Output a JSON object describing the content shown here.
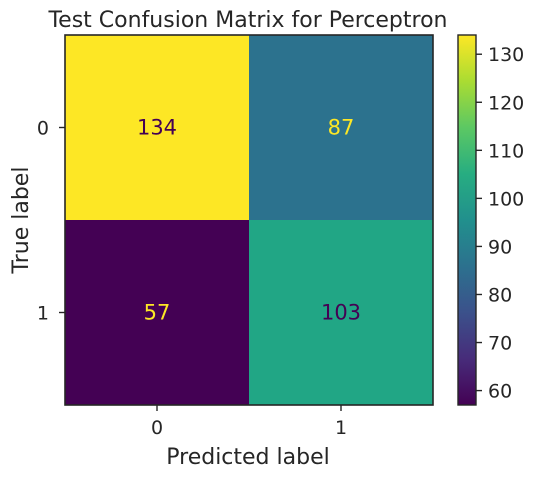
{
  "chart_data": {
    "type": "heatmap",
    "title": "Test Confusion Matrix for Perceptron",
    "xlabel": "Predicted label",
    "ylabel": "True label",
    "x_ticks": [
      "0",
      "1"
    ],
    "y_ticks": [
      "0",
      "1"
    ],
    "matrix": [
      [
        134,
        87
      ],
      [
        57,
        103
      ]
    ],
    "colormap": "viridis",
    "colorbar": {
      "range": [
        57,
        134
      ],
      "ticks": [
        60,
        70,
        80,
        90,
        100,
        110,
        120,
        130
      ]
    },
    "colors": {
      "cells": [
        [
          "#fde725",
          "#2c728e"
        ],
        [
          "#440154",
          "#21a685"
        ]
      ],
      "text": [
        [
          "#440154",
          "#fde725"
        ],
        [
          "#fde725",
          "#440154"
        ]
      ],
      "axis": "#262626"
    }
  }
}
